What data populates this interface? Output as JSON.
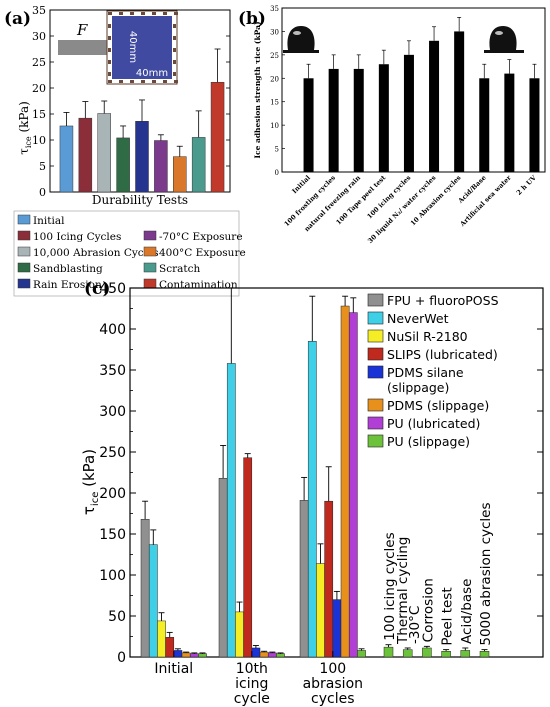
{
  "panel_labels": {
    "a": "(a)",
    "b": "(b)",
    "c": "(c)"
  },
  "inset_a": {
    "force": "F",
    "side_v": "40mm",
    "side_h": "40mm"
  },
  "chart_data": [
    {
      "type": "bar",
      "panel": "a",
      "xlabel": "Durability Tests",
      "ylabel": "τice (kPa)",
      "ylim": [
        0,
        35
      ],
      "yticks": [
        0,
        5,
        10,
        15,
        20,
        25,
        30,
        35
      ],
      "categories": [
        "Initial",
        "100 Icing Cycles",
        "10,000 Abrasion Cycles",
        "Sandblasting",
        "Rain Erosion",
        "-70°C Exposure",
        "400°C Exposure",
        "Scratch",
        "Contamination"
      ],
      "values": [
        12.7,
        14.2,
        15.1,
        10.4,
        13.6,
        9.9,
        6.8,
        10.5,
        21.1
      ],
      "errors": [
        2.6,
        3.2,
        2.4,
        2.3,
        4.1,
        1.1,
        2.0,
        5.1,
        6.4
      ],
      "colors": [
        "#5b9bd5",
        "#8b2e3a",
        "#a9b4b7",
        "#2f6b45",
        "#25348e",
        "#7b3a8c",
        "#d9772a",
        "#4a9a8e",
        "#c0392b"
      ],
      "legend_layout": [
        [
          "Initial"
        ],
        [
          "100 Icing Cycles",
          "-70°C Exposure"
        ],
        [
          "10,000 Abrasion Cycles",
          "400°C Exposure"
        ],
        [
          "Sandblasting",
          "Scratch"
        ],
        [
          "Rain Erosion",
          "Contamination"
        ]
      ]
    },
    {
      "type": "bar",
      "panel": "b",
      "ylabel": "Ice adhesion strength τice (kPa)",
      "ylim": [
        0,
        35
      ],
      "yticks": [
        0,
        5,
        10,
        15,
        20,
        25,
        30,
        35
      ],
      "categories": [
        "Initial",
        "100 frosting cycles",
        "natural freezing rain",
        "100 Tape peel test",
        "100 icing cycles",
        "30 liquid N₂/ water cycles",
        "10 Abrasion cycles",
        "Acid/Base",
        "Artificial sea water",
        "2 h UV"
      ],
      "values": [
        20,
        22,
        22,
        23,
        25,
        28,
        30,
        20,
        21,
        20
      ],
      "errors": [
        3,
        3,
        3,
        3,
        3,
        3,
        3,
        3,
        3,
        3
      ],
      "color": "#000000"
    },
    {
      "type": "bar",
      "panel": "c",
      "ylabel": "τice (kPa)",
      "ylim": [
        0,
        450
      ],
      "yticks": [
        0,
        50,
        100,
        150,
        200,
        250,
        300,
        350,
        400,
        450
      ],
      "groups": [
        "Initial",
        "10th icing cycle",
        "100 abrasion cycles"
      ],
      "group_label_lines": [
        [
          "Initial"
        ],
        [
          "10th",
          "icing",
          "cycle"
        ],
        [
          "100",
          "abrasion",
          "cycles"
        ]
      ],
      "series": [
        {
          "name": "FPU + fluoroPOSS",
          "color": "#909090",
          "values": [
            168,
            218,
            191
          ],
          "errors": [
            22,
            40,
            28
          ]
        },
        {
          "name": "NeverWet",
          "color": "#3fd0e8",
          "values": [
            137,
            358,
            385
          ],
          "errors": [
            18,
            95,
            55
          ]
        },
        {
          "name": "NuSil R-2180",
          "color": "#f5ee26",
          "values": [
            44,
            55,
            114
          ],
          "errors": [
            10,
            12,
            24
          ]
        },
        {
          "name": "SLIPS (lubricated)",
          "color": "#c02a1e",
          "values": [
            24,
            243,
            190
          ],
          "errors": [
            6,
            5,
            42
          ]
        },
        {
          "name": "PDMS silane (slippage)",
          "color": "#1933d6",
          "values": [
            8,
            11,
            70
          ],
          "errors": [
            2,
            3,
            10
          ]
        },
        {
          "name": "PDMS (slippage)",
          "color": "#e8901c",
          "values": [
            5,
            6,
            428
          ],
          "errors": [
            1,
            1,
            12
          ]
        },
        {
          "name": "PU (lubricated)",
          "color": "#b13fd6",
          "values": [
            4,
            5,
            420
          ],
          "errors": [
            1,
            1,
            18
          ]
        },
        {
          "name": "PU (slippage)",
          "color": "#6cc23b",
          "values": [
            4,
            4,
            8
          ],
          "errors": [
            1,
            1,
            2
          ]
        }
      ],
      "extra_group": {
        "series": "PU (slippage)",
        "categories": [
          "100 icing cycles",
          "Thermal cycling -30°C",
          "Corrosion",
          "Peel test",
          "Acid/base",
          "5000 abrasion cycles"
        ],
        "label_lines": [
          [
            "100 icing cycles"
          ],
          [
            "Thermal cycling",
            "-30°C"
          ],
          [
            "Corrosion"
          ],
          [
            "Peel test"
          ],
          [
            "Acid/base"
          ],
          [
            "5000 abrasion cycles"
          ]
        ],
        "values": [
          12,
          9,
          11,
          7,
          8,
          7
        ],
        "errors": [
          3,
          2,
          2,
          2,
          3,
          2
        ]
      }
    }
  ]
}
